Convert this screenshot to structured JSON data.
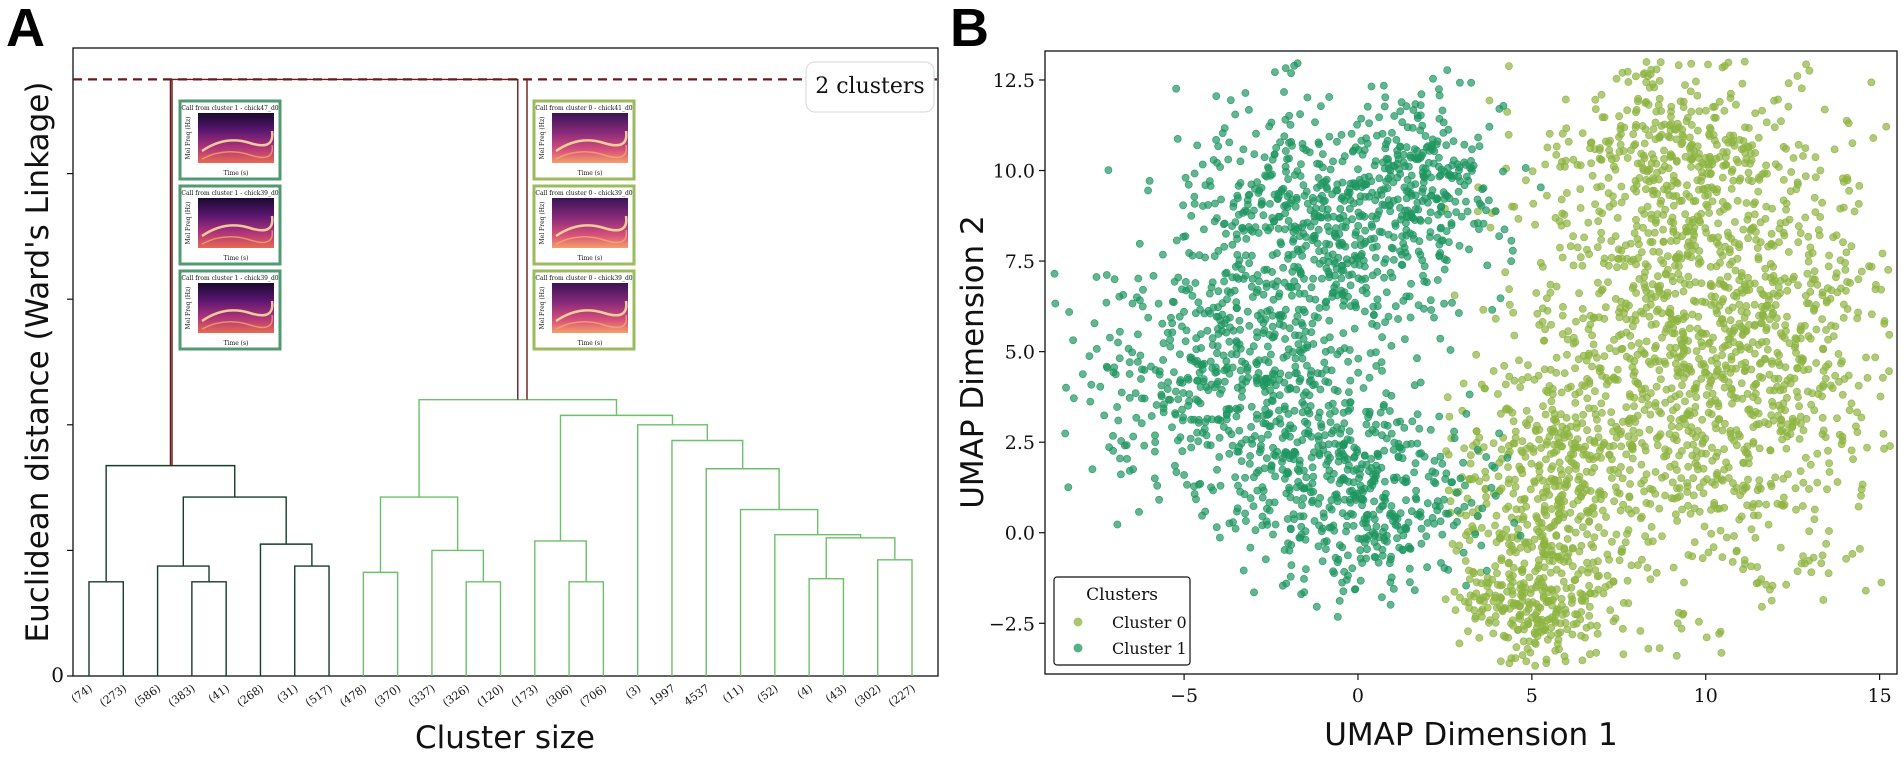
{
  "panel_a": {
    "letter": "A",
    "cut_label": "2 clusters",
    "thumbnails": [
      {
        "title": "Call from cluster 1 - chick47_d0",
        "xlabel": "Time (s)",
        "ylabel": "Mel Freq (Hz)",
        "cluster": 1
      },
      {
        "title": "Call from cluster 1 - chick39_d0",
        "xlabel": "Time (s)",
        "ylabel": "Mel Freq (Hz)",
        "cluster": 1
      },
      {
        "title": "Call from cluster 1 - chick39_d0",
        "xlabel": "Time (s)",
        "ylabel": "Mel Freq (Hz)",
        "cluster": 1
      },
      {
        "title": "Call from cluster 0 - chick41_d0",
        "xlabel": "Time (s)",
        "ylabel": "Mel Freq (Hz)",
        "cluster": 0
      },
      {
        "title": "Call from cluster 0 - chick39_d0",
        "xlabel": "Time (s)",
        "ylabel": "Mel Freq (Hz)",
        "cluster": 0
      },
      {
        "title": "Call from cluster 0 - chick39_d0",
        "xlabel": "Time (s)",
        "ylabel": "Mel Freq (Hz)",
        "cluster": 0
      }
    ]
  },
  "panel_b": {
    "letter": "B",
    "legend": {
      "title": "Clusters",
      "entries": [
        {
          "label": "Cluster 0",
          "color": "#8db440"
        },
        {
          "label": "Cluster 1",
          "color": "#1e9660"
        }
      ]
    }
  },
  "chart_data": [
    {
      "type": "dendrogram",
      "title": "",
      "xlabel": "Cluster size",
      "ylabel": "Euclidean distance (Ward's Linkage)",
      "y_tick_labels": [
        "0"
      ],
      "leaf_labels": [
        "(74)",
        "(273)",
        "(586)",
        "(383)",
        "(41)",
        "(268)",
        "(31)",
        "(517)",
        "(478)",
        "(370)",
        "(337)",
        "(326)",
        "(120)",
        "(173)",
        "(306)",
        "(706)",
        "(3)",
        "1997",
        "4537",
        "(11)",
        "(52)",
        "(4)",
        "(43)",
        "(302)",
        "(227)"
      ],
      "y_range": [
        0,
        100
      ],
      "cut_height": 95,
      "merges": [
        {
          "a": 0,
          "b": 1,
          "h": 15,
          "color": "#153d2b"
        },
        {
          "a": 3,
          "b": 4,
          "h": 15,
          "color": "#153d2b"
        },
        {
          "a": 2,
          "b": "m1",
          "h": 17.5,
          "color": "#153d2b"
        },
        {
          "a": 6,
          "b": 7,
          "h": 17.5,
          "color": "#153d2b"
        },
        {
          "a": 5,
          "b": "m3",
          "h": 21,
          "color": "#153d2b"
        },
        {
          "a": "m2",
          "b": "m4",
          "h": 28.5,
          "color": "#153d2b"
        },
        {
          "a": "m0",
          "b": "m5",
          "h": 33.5,
          "color": "#153d2b"
        },
        {
          "a": 8,
          "b": 9,
          "h": 16.5,
          "color": "#6cc06a"
        },
        {
          "a": 11,
          "b": 12,
          "h": 15,
          "color": "#6cc06a"
        },
        {
          "a": 10,
          "b": "m8",
          "h": 20,
          "color": "#6cc06a"
        },
        {
          "a": "m7",
          "b": "m9",
          "h": 28.5,
          "color": "#6cc06a"
        },
        {
          "a": 14,
          "b": 15,
          "h": 15,
          "color": "#6cc06a"
        },
        {
          "a": 13,
          "b": "m11",
          "h": 21.5,
          "color": "#6cc06a"
        },
        {
          "a": 21,
          "b": 22,
          "h": 15.5,
          "color": "#6cc06a"
        },
        {
          "a": 23,
          "b": 24,
          "h": 18.5,
          "color": "#6cc06a"
        },
        {
          "a": "m13",
          "b": "m14",
          "h": 22,
          "color": "#6cc06a"
        },
        {
          "a": 20,
          "b": "m15",
          "h": 22.5,
          "color": "#6cc06a"
        },
        {
          "a": 19,
          "b": "m16",
          "h": 26.5,
          "color": "#6cc06a"
        },
        {
          "a": 18,
          "b": "m17",
          "h": 33,
          "color": "#6cc06a"
        },
        {
          "a": 17,
          "b": "m18",
          "h": 37.5,
          "color": "#6cc06a"
        },
        {
          "a": 16,
          "b": "m19",
          "h": 40,
          "color": "#6cc06a"
        },
        {
          "a": "m12",
          "b": "m20",
          "h": 41.5,
          "color": "#6cc06a"
        },
        {
          "a": "m10",
          "b": "m21",
          "h": 44,
          "color": "#6cc06a"
        },
        {
          "a": "m6",
          "b": "m22",
          "h": 95,
          "color": "#6b1a1a"
        }
      ]
    },
    {
      "type": "scatter",
      "title": "",
      "xlabel": "UMAP Dimension 1",
      "ylabel": "UMAP Dimension 2",
      "xlim": [
        -9,
        15.5
      ],
      "ylim": [
        -3.9,
        13.3
      ],
      "x_ticks": [
        -5,
        0,
        5,
        10,
        15
      ],
      "y_ticks": [
        -2.5,
        0.0,
        2.5,
        5.0,
        7.5,
        10.0,
        12.5
      ],
      "x_tick_labels": [
        "−5",
        "0",
        "5",
        "10",
        "15"
      ],
      "y_tick_labels": [
        "−2.5",
        "0.0",
        "2.5",
        "5.0",
        "7.5",
        "10.0",
        "12.5"
      ],
      "legend_position": "lower-left",
      "series": [
        {
          "name": "Cluster 0",
          "color": "#8db440",
          "approx_points": 2400,
          "regions": [
            {
              "cx": 10,
              "cy": 5,
              "sx": 2.7,
              "sy": 3.2,
              "w": 0.6
            },
            {
              "cx": 9,
              "cy": 10.5,
              "sx": 1.5,
              "sy": 1.3,
              "w": 0.12
            },
            {
              "cx": 5.5,
              "cy": 1,
              "sx": 1.6,
              "sy": 1.8,
              "w": 0.18
            },
            {
              "cx": 5,
              "cy": -2,
              "sx": 1.1,
              "sy": 0.8,
              "w": 0.1
            }
          ]
        },
        {
          "name": "Cluster 1",
          "color": "#1e9660",
          "approx_points": 1800,
          "regions": [
            {
              "cx": -1,
              "cy": 8.5,
              "sx": 2.1,
              "sy": 1.7,
              "w": 0.35
            },
            {
              "cx": -3.5,
              "cy": 4,
              "sx": 2.3,
              "sy": 1.6,
              "w": 0.3
            },
            {
              "cx": 0,
              "cy": 1,
              "sx": 1.6,
              "sy": 1.3,
              "w": 0.25
            },
            {
              "cx": 2,
              "cy": 10,
              "sx": 0.9,
              "sy": 1.1,
              "w": 0.1
            }
          ]
        }
      ]
    }
  ]
}
